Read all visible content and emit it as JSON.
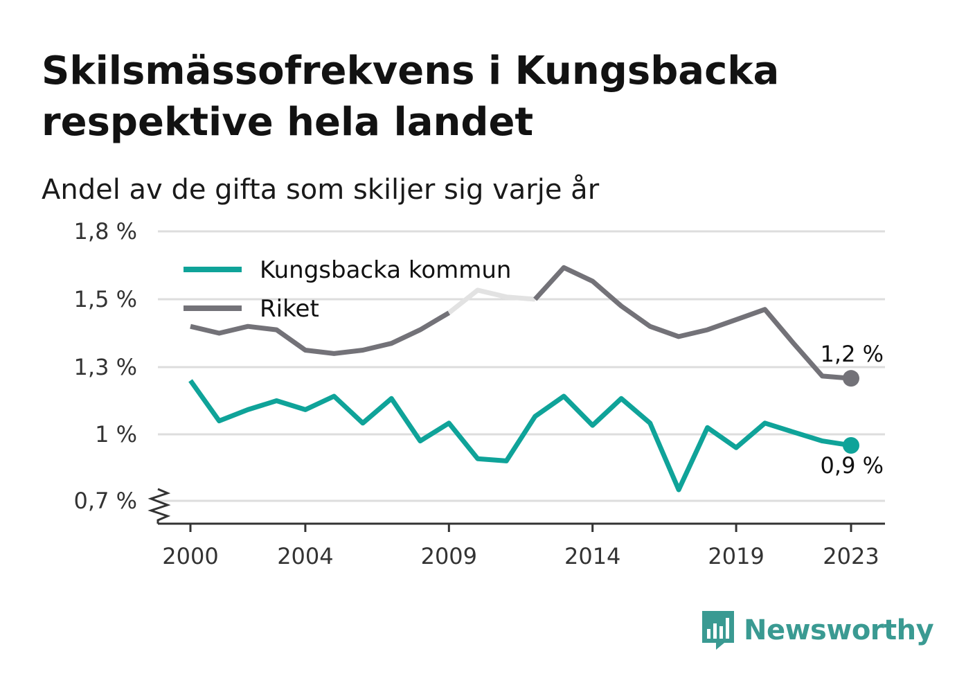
{
  "title": "Skilsmässofrekvens i Kungsbacka respektive hela landet",
  "subtitle": "Andel av de gifta som skiljer sig varje år",
  "brand": {
    "name": "Newsworthy",
    "color": "#3a9a92",
    "icon": "bar-chart-speech-icon"
  },
  "colors": {
    "kungsbacka": "#0fa399",
    "riket": "#737278",
    "riket_faded": "#e2e2e2",
    "grid": "#dddddd",
    "axis": "#333333"
  },
  "chart_data": {
    "type": "line",
    "title": "Skilsmässofrekvens i Kungsbacka respektive hela landet",
    "subtitle": "Andel av de gifta som skiljer sig varje år",
    "x": [
      2000,
      2001,
      2002,
      2003,
      2004,
      2005,
      2006,
      2007,
      2008,
      2009,
      2010,
      2011,
      2012,
      2013,
      2014,
      2015,
      2016,
      2017,
      2018,
      2019,
      2020,
      2021,
      2022,
      2023
    ],
    "x_ticks": [
      2000,
      2004,
      2009,
      2014,
      2019,
      2023
    ],
    "y_ticks": [
      0.7,
      1.0,
      1.3,
      1.5,
      1.8
    ],
    "y_tick_labels": [
      "0,7 %",
      "1 %",
      "1,3 %",
      "1,5 %",
      "1,8 %"
    ],
    "ylim": [
      0.6,
      1.8
    ],
    "axis_break": true,
    "grid": true,
    "legend_position": "top-left",
    "series": [
      {
        "name": "Kungsbacka kommun",
        "color": "#0fa399",
        "values": [
          1.24,
          1.06,
          1.11,
          1.15,
          1.11,
          1.17,
          1.05,
          1.16,
          0.97,
          1.05,
          0.89,
          0.88,
          1.08,
          1.17,
          1.04,
          1.16,
          1.05,
          0.75,
          1.03,
          0.94,
          1.05,
          1.01,
          0.97,
          0.95
        ],
        "end_label": "0,9 %"
      },
      {
        "name": "Riket",
        "color": "#737278",
        "values": [
          1.42,
          1.4,
          1.42,
          1.41,
          1.35,
          1.34,
          1.35,
          1.37,
          1.41,
          1.46,
          1.54,
          1.51,
          1.5,
          1.64,
          1.58,
          1.48,
          1.42,
          1.39,
          1.41,
          1.44,
          1.47,
          1.37,
          1.26,
          1.25
        ],
        "faded_range": [
          2009,
          2012
        ],
        "end_label": "1,2 %"
      }
    ]
  }
}
